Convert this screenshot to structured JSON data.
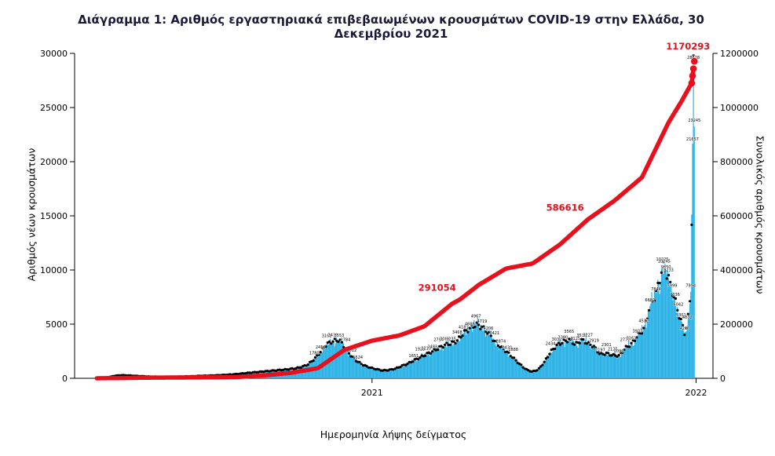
{
  "chart_data": {
    "type": "composite",
    "title": "Διάγραμμα 1: Αριθμός εργαστηριακά επιβεβαιωμένων κρουσμάτων COVID-19 στην Ελλάδα, 30 Δεκεμβρίου 2021",
    "xlabel": "Ημερομηνία λήψης δείγματος",
    "x_type": "date",
    "x_range": [
      "2020-02-01",
      "2022-01-20"
    ],
    "xticks": [
      {
        "label": "2021",
        "date": "2021-01-01"
      },
      {
        "label": "2022",
        "date": "2022-01-01"
      }
    ],
    "left_axis": {
      "label": "Αριθμός νέων κρουσμάτων",
      "lim": [
        0,
        30000
      ],
      "ticks": [
        0,
        5000,
        10000,
        15000,
        20000,
        25000,
        30000
      ]
    },
    "right_axis": {
      "label": "Συνολικός αριθμός κρουσμάτων",
      "lim": [
        0,
        1200000
      ],
      "ticks": [
        0,
        200000,
        400000,
        600000,
        800000,
        1000000,
        1200000
      ]
    },
    "series": [
      {
        "name": "daily_new_cases",
        "type": "bar",
        "axis": "left",
        "color": "#2eb3e6",
        "points": [
          [
            "2020-02-26",
            3
          ],
          [
            "2020-03-04",
            35
          ],
          [
            "2020-03-11",
            120
          ],
          [
            "2020-03-18",
            240
          ],
          [
            "2020-03-25",
            290
          ],
          [
            "2020-04-01",
            262
          ],
          [
            "2020-04-08",
            233
          ],
          [
            "2020-04-15",
            205
          ],
          [
            "2020-04-22",
            176
          ],
          [
            "2020-04-29",
            148
          ],
          [
            "2020-05-06",
            135
          ],
          [
            "2020-05-13",
            126
          ],
          [
            "2020-05-20",
            138
          ],
          [
            "2020-05-27",
            151
          ],
          [
            "2020-06-03",
            168
          ],
          [
            "2020-06-10",
            187
          ],
          [
            "2020-06-17",
            208
          ],
          [
            "2020-06-24",
            229
          ],
          [
            "2020-07-01",
            248
          ],
          [
            "2020-07-08",
            268
          ],
          [
            "2020-07-15",
            298
          ],
          [
            "2020-07-22",
            331
          ],
          [
            "2020-07-29",
            368
          ],
          [
            "2020-08-05",
            418
          ],
          [
            "2020-08-12",
            476
          ],
          [
            "2020-08-19",
            538
          ],
          [
            "2020-08-26",
            588
          ],
          [
            "2020-09-02",
            637
          ],
          [
            "2020-09-09",
            688
          ],
          [
            "2020-09-16",
            742
          ],
          [
            "2020-09-23",
            793
          ],
          [
            "2020-09-30",
            848
          ],
          [
            "2020-10-07",
            922
          ],
          [
            "2020-10-14",
            1052
          ],
          [
            "2020-10-21",
            1284
          ],
          [
            "2020-10-28",
            1780
          ],
          [
            "2020-11-04",
            2452
          ],
          [
            "2020-11-11",
            3161
          ],
          [
            "2020-11-18",
            3438
          ],
          [
            "2020-11-25",
            3553
          ],
          [
            "2020-12-02",
            2784
          ],
          [
            "2020-12-09",
            2012
          ],
          [
            "2020-12-16",
            1524
          ],
          [
            "2020-12-23",
            1192
          ],
          [
            "2020-12-30",
            982
          ],
          [
            "2021-01-06",
            841
          ],
          [
            "2021-01-13",
            722
          ],
          [
            "2021-01-20",
            764
          ],
          [
            "2021-01-27",
            883
          ],
          [
            "2021-02-03",
            1121
          ],
          [
            "2021-02-10",
            1342
          ],
          [
            "2021-02-17",
            1651
          ],
          [
            "2021-02-24",
            1923
          ],
          [
            "2021-03-03",
            2215
          ],
          [
            "2021-03-10",
            2483
          ],
          [
            "2021-03-17",
            2794
          ],
          [
            "2021-03-24",
            3083
          ],
          [
            "2021-03-31",
            3235
          ],
          [
            "2021-04-07",
            3468
          ],
          [
            "2021-04-14",
            4181
          ],
          [
            "2021-04-21",
            4608
          ],
          [
            "2021-04-28",
            4967
          ],
          [
            "2021-05-05",
            4719
          ],
          [
            "2021-05-12",
            4206
          ],
          [
            "2021-05-19",
            3421
          ],
          [
            "2021-05-26",
            2874
          ],
          [
            "2021-06-02",
            2430
          ],
          [
            "2021-06-09",
            1888
          ],
          [
            "2021-06-16",
            1322
          ],
          [
            "2021-06-23",
            842
          ],
          [
            "2021-06-30",
            612
          ],
          [
            "2021-07-07",
            782
          ],
          [
            "2021-07-14",
            1492
          ],
          [
            "2021-07-21",
            2434
          ],
          [
            "2021-07-28",
            3032
          ],
          [
            "2021-08-04",
            3380
          ],
          [
            "2021-08-11",
            3565
          ],
          [
            "2021-08-18",
            3125
          ],
          [
            "2021-08-25",
            3538
          ],
          [
            "2021-09-01",
            3227
          ],
          [
            "2021-09-08",
            2919
          ],
          [
            "2021-09-15",
            2197
          ],
          [
            "2021-09-22",
            2301
          ],
          [
            "2021-09-29",
            2125
          ],
          [
            "2021-10-06",
            2090
          ],
          [
            "2021-10-13",
            2772
          ],
          [
            "2021-10-20",
            3163
          ],
          [
            "2021-10-27",
            3937
          ],
          [
            "2021-11-03",
            4512
          ],
          [
            "2021-11-10",
            6682
          ],
          [
            "2021-11-17",
            7844
          ],
          [
            "2021-11-24",
            10225
          ],
          [
            "2021-11-26",
            10245
          ],
          [
            "2021-11-28",
            9850
          ],
          [
            "2021-12-01",
            9233
          ],
          [
            "2021-12-05",
            7999
          ],
          [
            "2021-12-08",
            7336
          ],
          [
            "2021-12-12",
            6042
          ],
          [
            "2021-12-15",
            5301
          ],
          [
            "2021-12-19",
            4206
          ],
          [
            "2021-12-22",
            4872
          ],
          [
            "2021-12-26",
            7994
          ],
          [
            "2021-12-28",
            21657
          ],
          [
            "2021-12-29",
            28828
          ],
          [
            "2021-12-30",
            23245
          ]
        ]
      },
      {
        "name": "smoothed_daily_cases",
        "type": "scatter",
        "axis": "left",
        "color": "#000000",
        "derived_from": "daily_new_cases"
      },
      {
        "name": "cumulative_cases",
        "type": "line",
        "axis": "right",
        "color": "#e8101c",
        "points": [
          [
            "2020-02-26",
            3
          ],
          [
            "2020-04-01",
            1380
          ],
          [
            "2020-05-01",
            2620
          ],
          [
            "2020-06-01",
            2950
          ],
          [
            "2020-07-01",
            3460
          ],
          [
            "2020-08-01",
            4480
          ],
          [
            "2020-09-01",
            10520
          ],
          [
            "2020-10-01",
            19850
          ],
          [
            "2020-11-01",
            37200
          ],
          [
            "2020-12-01",
            105300
          ],
          [
            "2021-01-01",
            138850
          ],
          [
            "2021-02-01",
            158500
          ],
          [
            "2021-03-01",
            192000
          ],
          [
            "2021-04-01",
            275000
          ],
          [
            "2021-04-10",
            291054
          ],
          [
            "2021-05-01",
            344500
          ],
          [
            "2021-06-01",
            405500
          ],
          [
            "2021-07-01",
            424000
          ],
          [
            "2021-08-01",
            495000
          ],
          [
            "2021-09-01",
            586616
          ],
          [
            "2021-10-01",
            655800
          ],
          [
            "2021-11-01",
            742000
          ],
          [
            "2021-12-01",
            945000
          ],
          [
            "2021-12-15",
            1020000
          ],
          [
            "2021-12-27",
            1090000
          ],
          [
            "2021-12-30",
            1170293
          ]
        ]
      }
    ],
    "annotations": [
      {
        "text": "291054",
        "date": "2021-04-10",
        "series": "cumulative_cases",
        "color": "#e8101c"
      },
      {
        "text": "586616",
        "date": "2021-09-01",
        "series": "cumulative_cases",
        "color": "#e8101c"
      },
      {
        "text": "1170293",
        "date": "2021-12-30",
        "series": "cumulative_cases",
        "color": "#e8101c"
      }
    ],
    "grid": false,
    "legend": "none"
  }
}
